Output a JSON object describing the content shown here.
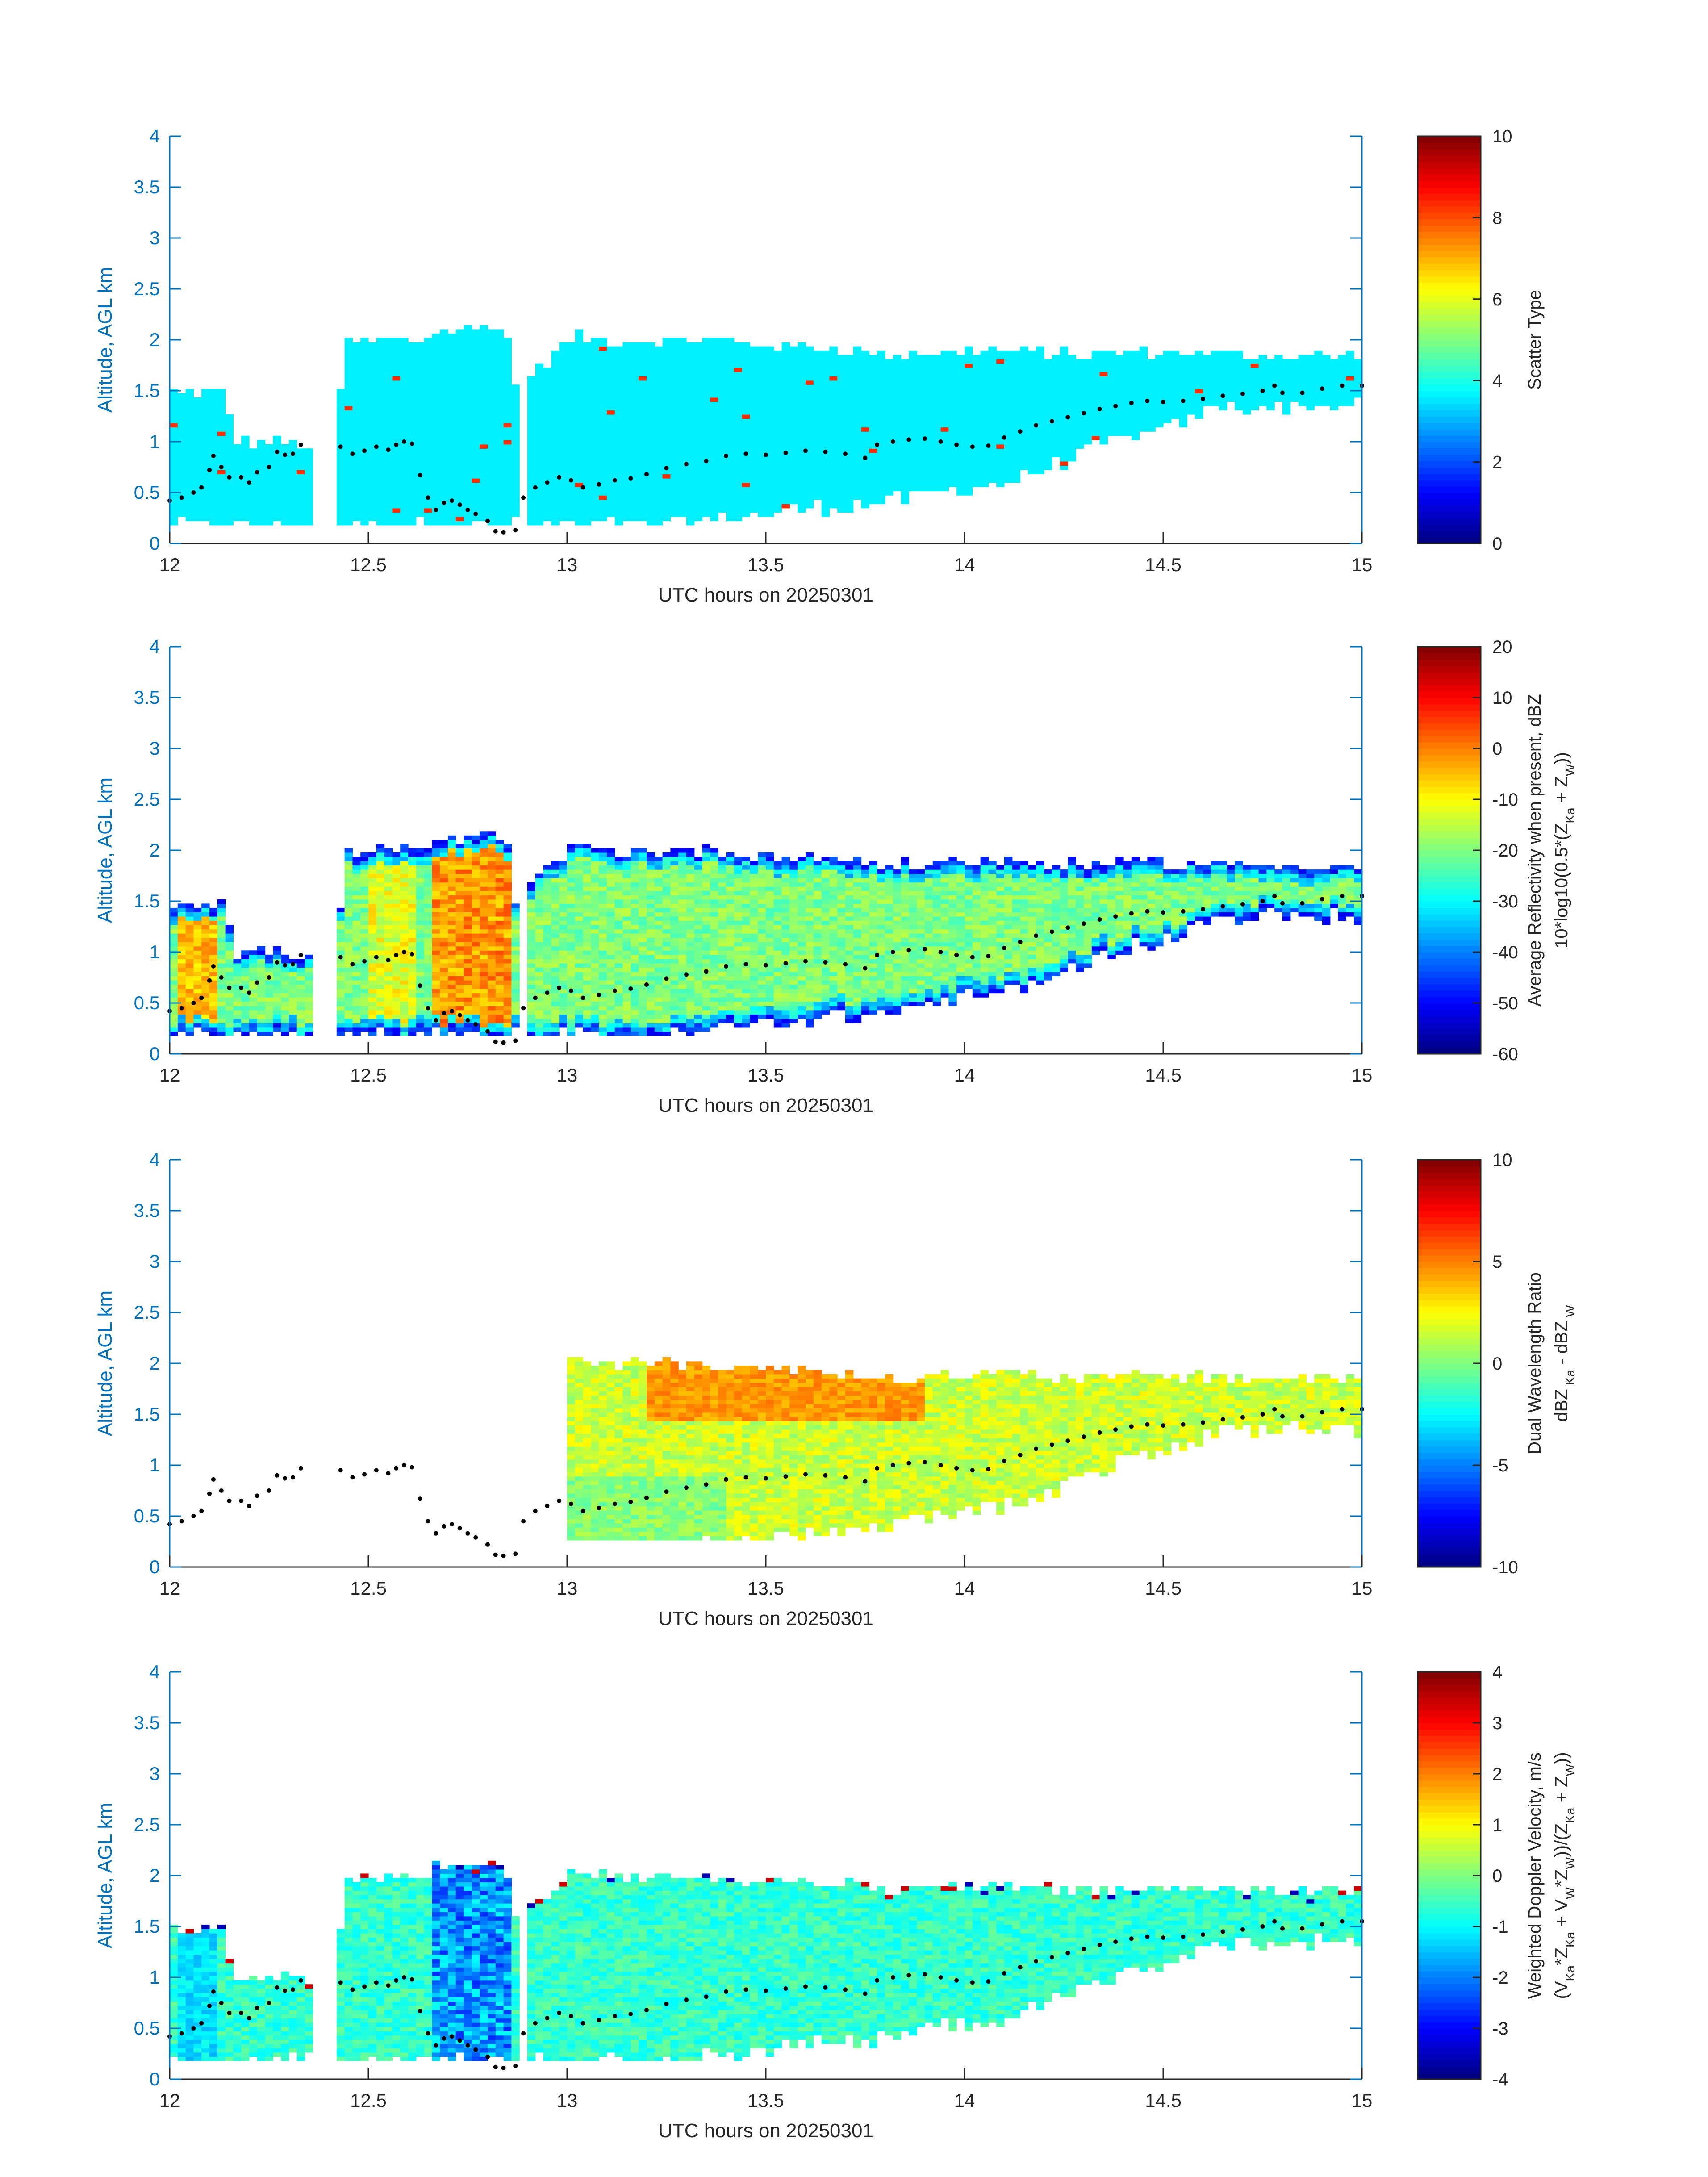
{
  "figure": {
    "x_ticks": [
      12,
      12.5,
      13,
      13.5,
      14,
      14.5,
      15
    ],
    "y_ticks": [
      0,
      0.5,
      1,
      1.5,
      2,
      2.5,
      3,
      3.5,
      4
    ],
    "colors": {
      "axis": "#0072bd",
      "ticks": "#262626",
      "flight_track": "#000000"
    }
  },
  "chart_data": [
    {
      "type": "heatmap",
      "panel": 1,
      "xlabel": "UTC hours on 20250301",
      "ylabel": "Altitude, AGL km",
      "xlim": [
        12,
        15
      ],
      "ylim": [
        0,
        4
      ],
      "colorbar": {
        "label_lines": [
          "Scatter Type"
        ],
        "range": [
          0,
          10
        ],
        "ticks": [
          0,
          2,
          4,
          6,
          8,
          10
        ]
      },
      "field_summary": "Cloud echo mostly scatter type ~3.6 (cyan), with isolated ~8.3 (red-orange) pixels near the surface and cloud top",
      "flight_track": "shown as black dotted line (altitude km vs hour)"
    },
    {
      "type": "heatmap",
      "panel": 2,
      "xlabel": "UTC hours on 20250301",
      "ylabel": "Altitude, AGL km",
      "xlim": [
        12,
        15
      ],
      "ylim": [
        0,
        4
      ],
      "colorbar": {
        "label_lines": [
          "Average Reflectivity when present, dBZ",
          "10*log10(0.5*(Z_Ka + Z_W))"
        ],
        "range": [
          -60,
          20
        ],
        "ticks": [
          -60,
          -50,
          -40,
          -30,
          -20,
          -10,
          0,
          10,
          20
        ]
      },
      "field_summary": "Reflectivity from about -55 dBZ at cloud edges up to about +10 dBZ near 12.7-12.85 h",
      "flight_track": "shown as black dotted line (altitude km vs hour)"
    },
    {
      "type": "heatmap",
      "panel": 3,
      "xlabel": "UTC hours on 20250301",
      "ylabel": "Altitude, AGL km",
      "xlim": [
        12,
        15
      ],
      "ylim": [
        0,
        4
      ],
      "colorbar": {
        "label_lines": [
          "Dual Wavelength Ratio",
          "dBZ_Ka - dBZ_W"
        ],
        "range": [
          -10,
          10
        ],
        "ticks": [
          -10,
          -5,
          0,
          5,
          10
        ]
      },
      "field_summary": "DWR present only from 13 to 15 h, mostly 0 to +5 dB, highest (~+5) near cloud top",
      "flight_track": "shown as black dotted line (altitude km vs hour)"
    },
    {
      "type": "heatmap",
      "panel": 4,
      "xlabel": "UTC hours on 20250301",
      "ylabel": "Altitude, AGL km",
      "xlim": [
        12,
        15
      ],
      "ylim": [
        0,
        4
      ],
      "colorbar": {
        "label_lines": [
          "Weighted Doppler Velocity, m/s",
          "(V_Ka*Z_Ka + V_W*Z_W)/(Z_Ka + Z_W)"
        ],
        "range": [
          -4,
          4
        ],
        "ticks": [
          -4,
          -3,
          -2,
          -1,
          0,
          1,
          2,
          3,
          4
        ]
      },
      "field_summary": "Mostly -1 to 0 m/s, with downdraft streaks to about -2.5 m/s near 12.65-12.85 h",
      "flight_track": "shown as black dotted line (altitude km vs hour)"
    }
  ],
  "flight_track_points": [
    [
      12.0,
      0.42
    ],
    [
      12.03,
      0.45
    ],
    [
      12.06,
      0.5
    ],
    [
      12.08,
      0.55
    ],
    [
      12.1,
      0.72
    ],
    [
      12.11,
      0.86
    ],
    [
      12.13,
      0.75
    ],
    [
      12.15,
      0.65
    ],
    [
      12.18,
      0.65
    ],
    [
      12.2,
      0.6
    ],
    [
      12.22,
      0.7
    ],
    [
      12.25,
      0.75
    ],
    [
      12.27,
      0.9
    ],
    [
      12.29,
      0.87
    ],
    [
      12.31,
      0.88
    ],
    [
      12.33,
      0.97
    ],
    [
      12.43,
      0.95
    ],
    [
      12.46,
      0.88
    ],
    [
      12.49,
      0.91
    ],
    [
      12.52,
      0.95
    ],
    [
      12.55,
      0.92
    ],
    [
      12.57,
      0.97
    ],
    [
      12.59,
      1.0
    ],
    [
      12.61,
      0.98
    ],
    [
      12.63,
      0.67
    ],
    [
      12.65,
      0.45
    ],
    [
      12.67,
      0.33
    ],
    [
      12.69,
      0.4
    ],
    [
      12.71,
      0.42
    ],
    [
      12.73,
      0.38
    ],
    [
      12.75,
      0.33
    ],
    [
      12.77,
      0.29
    ],
    [
      12.8,
      0.22
    ],
    [
      12.82,
      0.12
    ],
    [
      12.84,
      0.11
    ],
    [
      12.87,
      0.13
    ],
    [
      12.89,
      0.45
    ],
    [
      12.92,
      0.55
    ],
    [
      12.95,
      0.6
    ],
    [
      12.98,
      0.65
    ],
    [
      13.01,
      0.62
    ],
    [
      13.04,
      0.55
    ],
    [
      13.08,
      0.58
    ],
    [
      13.12,
      0.62
    ],
    [
      13.16,
      0.64
    ],
    [
      13.2,
      0.68
    ],
    [
      13.25,
      0.74
    ],
    [
      13.3,
      0.78
    ],
    [
      13.35,
      0.81
    ],
    [
      13.4,
      0.86
    ],
    [
      13.45,
      0.88
    ],
    [
      13.5,
      0.87
    ],
    [
      13.55,
      0.89
    ],
    [
      13.6,
      0.91
    ],
    [
      13.65,
      0.9
    ],
    [
      13.7,
      0.88
    ],
    [
      13.75,
      0.84
    ],
    [
      13.78,
      0.97
    ],
    [
      13.82,
      1.0
    ],
    [
      13.86,
      1.02
    ],
    [
      13.9,
      1.03
    ],
    [
      13.94,
      1.0
    ],
    [
      13.98,
      0.97
    ],
    [
      14.02,
      0.95
    ],
    [
      14.06,
      0.96
    ],
    [
      14.1,
      1.04
    ],
    [
      14.14,
      1.1
    ],
    [
      14.18,
      1.16
    ],
    [
      14.22,
      1.2
    ],
    [
      14.26,
      1.24
    ],
    [
      14.3,
      1.28
    ],
    [
      14.34,
      1.32
    ],
    [
      14.38,
      1.35
    ],
    [
      14.42,
      1.38
    ],
    [
      14.46,
      1.4
    ],
    [
      14.5,
      1.39
    ],
    [
      14.55,
      1.4
    ],
    [
      14.6,
      1.42
    ],
    [
      14.65,
      1.45
    ],
    [
      14.7,
      1.47
    ],
    [
      14.75,
      1.5
    ],
    [
      14.78,
      1.55
    ],
    [
      14.8,
      1.48
    ],
    [
      14.85,
      1.48
    ],
    [
      14.9,
      1.52
    ],
    [
      14.95,
      1.55
    ],
    [
      15.0,
      1.55
    ]
  ]
}
